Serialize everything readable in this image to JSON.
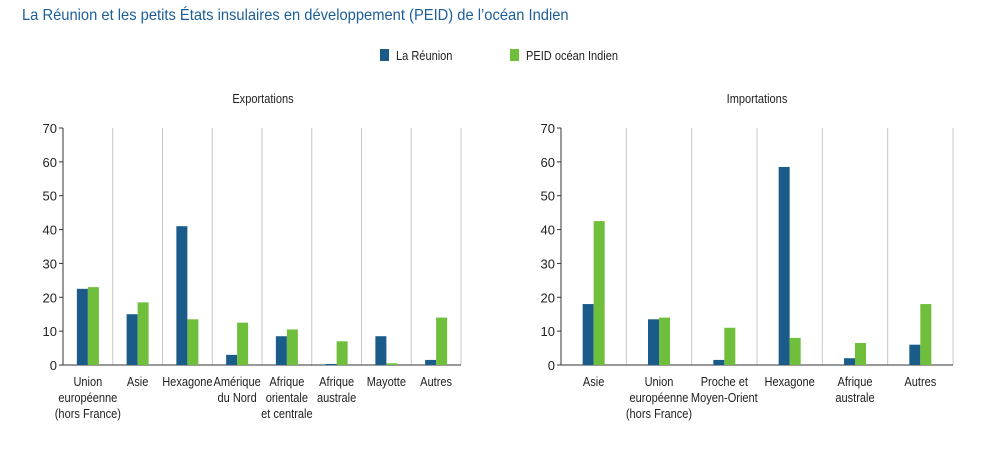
{
  "title": "La Réunion et les petits États insulaires en développement (PEID) de l’océan Indien",
  "legend": [
    "La Réunion",
    "PEID océan Indien"
  ],
  "colors": {
    "reunion": "#1a5b8a",
    "peid": "#6fbf3c",
    "title": "#1b5e98",
    "axis": "#333333",
    "grid": "#c7c7c7"
  },
  "chart_data": [
    {
      "type": "bar",
      "title": "Exportations",
      "categories": [
        [
          "Union",
          "européenne",
          "(hors France)"
        ],
        [
          "Asie"
        ],
        [
          "Hexagone"
        ],
        [
          "Amérique",
          "du Nord"
        ],
        [
          "Afrique",
          "orientale",
          "et centrale"
        ],
        [
          "Afrique",
          "australe"
        ],
        [
          "Mayotte"
        ],
        [
          "Autres"
        ]
      ],
      "series": [
        {
          "name": "La Réunion",
          "values": [
            22.5,
            15,
            41,
            3,
            8.5,
            0.3,
            8.5,
            1.5
          ]
        },
        {
          "name": "PEID océan Indien",
          "values": [
            23,
            18.5,
            13.5,
            12.5,
            10.5,
            7,
            0.5,
            14
          ]
        }
      ],
      "ylim": [
        0,
        70
      ],
      "yticks": [
        0,
        10,
        20,
        30,
        40,
        50,
        60,
        70
      ],
      "grid": "vertical",
      "legend": "top-center"
    },
    {
      "type": "bar",
      "title": "Importations",
      "categories": [
        [
          "Asie"
        ],
        [
          "Union",
          "européenne",
          "(hors France)"
        ],
        [
          "Proche et",
          "Moyen-Orient"
        ],
        [
          "Hexagone"
        ],
        [
          "Afrique",
          "australe"
        ],
        [
          "Autres"
        ]
      ],
      "series": [
        {
          "name": "La Réunion",
          "values": [
            18,
            13.5,
            1.5,
            58.5,
            2,
            6
          ]
        },
        {
          "name": "PEID océan Indien",
          "values": [
            42.5,
            14,
            11,
            8,
            6.5,
            18
          ]
        }
      ],
      "ylim": [
        0,
        70
      ],
      "yticks": [
        0,
        10,
        20,
        30,
        40,
        50,
        60,
        70
      ],
      "grid": "vertical",
      "legend": "top-center"
    }
  ]
}
